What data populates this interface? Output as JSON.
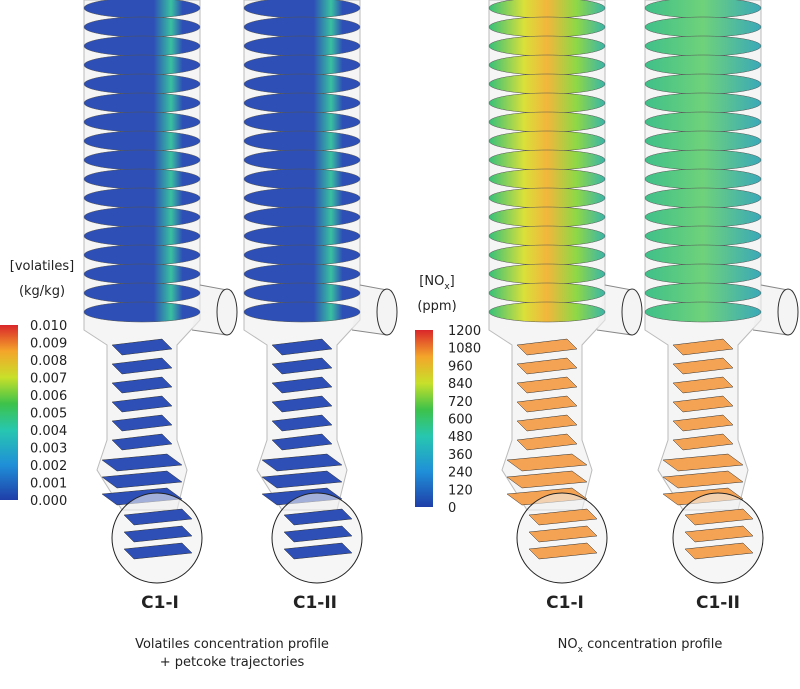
{
  "left_legend": {
    "title": "[volatiles]",
    "unit": "(kg/kg)",
    "ticks": [
      "0.010",
      "0.009",
      "0.008",
      "0.007",
      "0.006",
      "0.005",
      "0.004",
      "0.003",
      "0.002",
      "0.001",
      "0.000"
    ]
  },
  "right_legend": {
    "title": {
      "main": "[NO",
      "sub": "x",
      "tail": "]"
    },
    "unit": "(ppm)",
    "ticks": [
      "1200",
      "1080",
      "960",
      "840",
      "720",
      "600",
      "480",
      "360",
      "240",
      "120",
      "0"
    ]
  },
  "cases": [
    "C1-I",
    "C1-II",
    "C1-I",
    "C1-II"
  ],
  "captions": {
    "left": [
      "Volatiles concentration profile",
      "+ petcoke trajectories"
    ],
    "right": {
      "main": "NO",
      "sub": "x",
      "tail": " concentration profile"
    }
  }
}
